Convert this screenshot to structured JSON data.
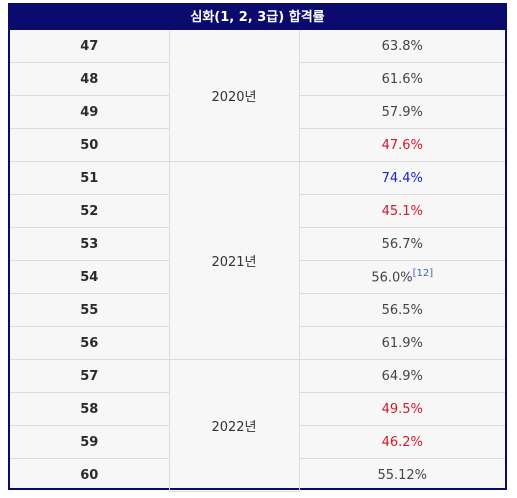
{
  "title": "심화(1, 2, 3급) 합격률",
  "colors": {
    "header_bg": "#0b0b6e",
    "high": "#1a24c9",
    "low": "#d11a2a"
  },
  "groups": [
    {
      "year": "2020년",
      "rows": [
        {
          "round": "47",
          "rate": "63.8%",
          "tone": "normal"
        },
        {
          "round": "48",
          "rate": "61.6%",
          "tone": "normal"
        },
        {
          "round": "49",
          "rate": "57.9%",
          "tone": "normal"
        },
        {
          "round": "50",
          "rate": "47.6%",
          "tone": "low"
        }
      ]
    },
    {
      "year": "2021년",
      "rows": [
        {
          "round": "51",
          "rate": "74.4%",
          "tone": "high"
        },
        {
          "round": "52",
          "rate": "45.1%",
          "tone": "low"
        },
        {
          "round": "53",
          "rate": "56.7%",
          "tone": "normal"
        },
        {
          "round": "54",
          "rate": "56.0%",
          "ref": "[12]",
          "tone": "normal"
        },
        {
          "round": "55",
          "rate": "56.5%",
          "tone": "normal"
        },
        {
          "round": "56",
          "rate": "61.9%",
          "tone": "normal"
        }
      ]
    },
    {
      "year": "2022년",
      "rows": [
        {
          "round": "57",
          "rate": "64.9%",
          "tone": "normal"
        },
        {
          "round": "58",
          "rate": "49.5%",
          "tone": "low"
        },
        {
          "round": "59",
          "rate": "46.2%",
          "tone": "low"
        },
        {
          "round": "60",
          "rate": "55.12%",
          "tone": "normal"
        }
      ]
    }
  ]
}
